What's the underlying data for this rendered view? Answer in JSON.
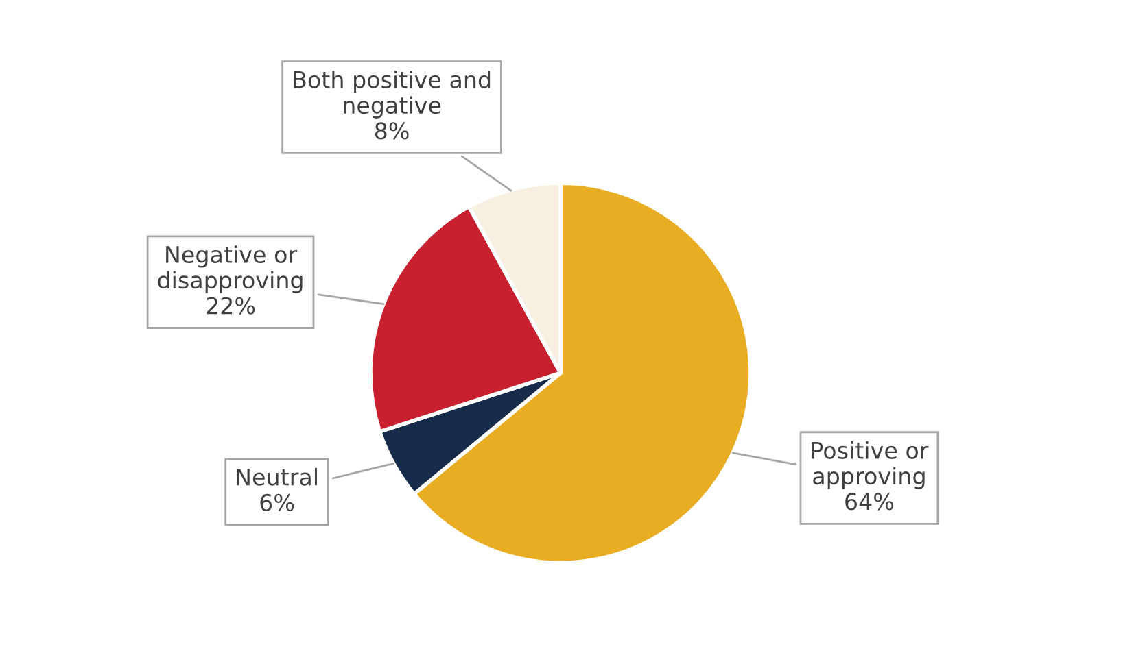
{
  "chart_data": {
    "type": "pie",
    "categories": [
      "Positive or\napproving",
      "Neutral",
      "Negative or\ndisapproving",
      "Both positive and\nnegative"
    ],
    "values": [
      64,
      6,
      22,
      8
    ],
    "colors": [
      "#e9ad24",
      "#172b4a",
      "#c8202f",
      "#f7f0e1"
    ],
    "value_labels": [
      "64%",
      "6%",
      "22%",
      "8%"
    ],
    "legend": false
  }
}
